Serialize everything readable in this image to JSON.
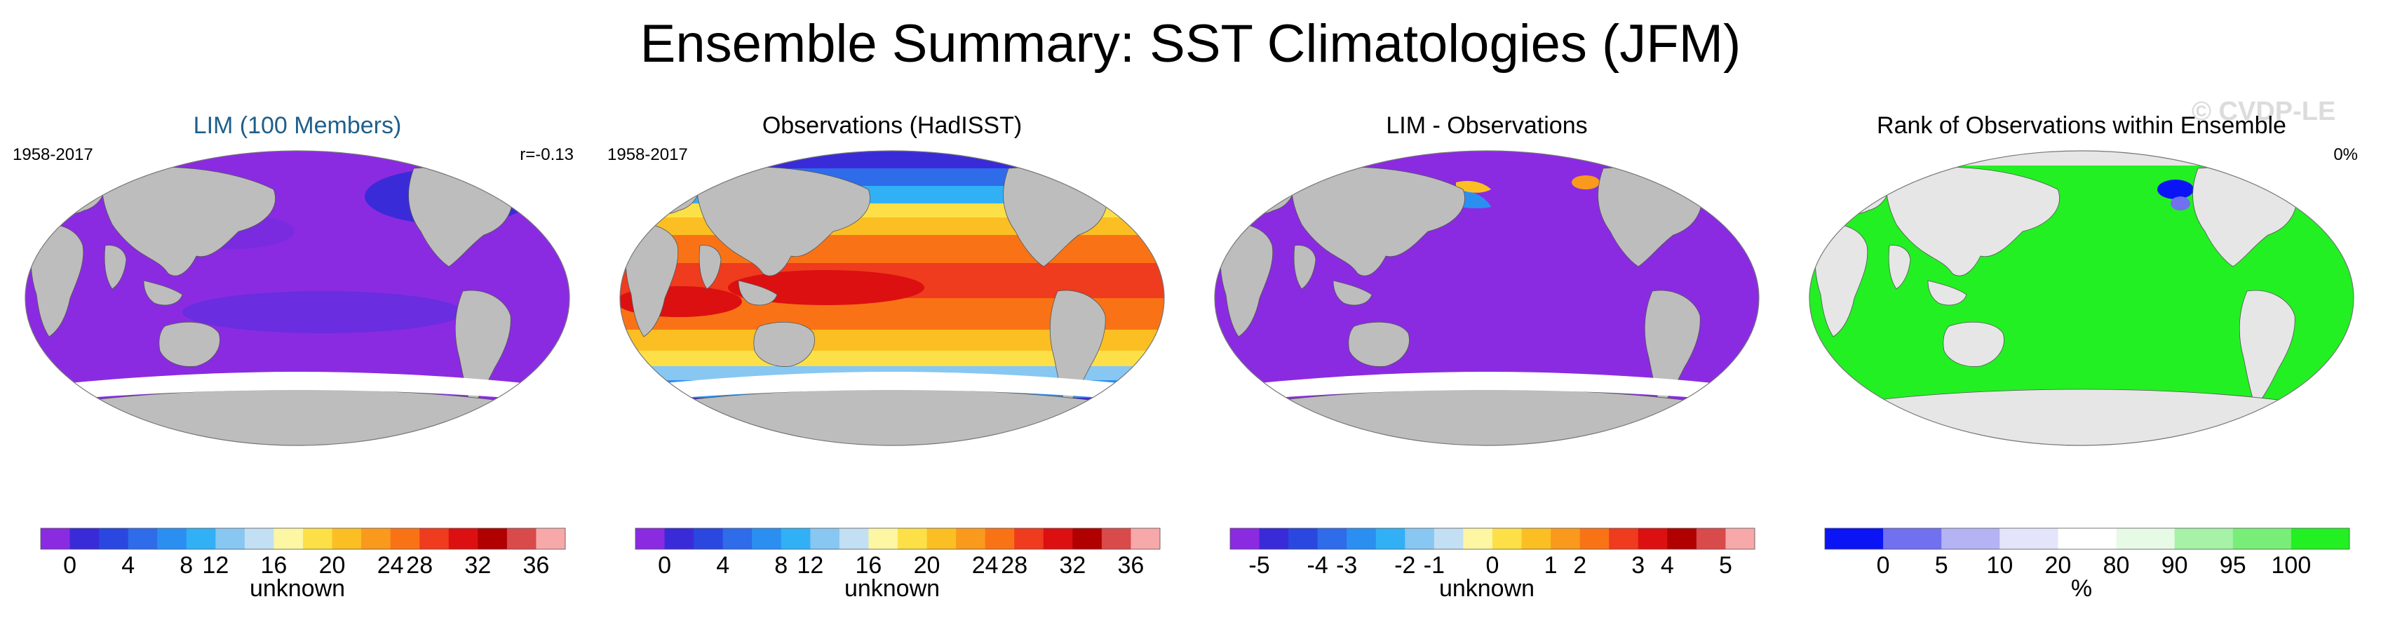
{
  "figure": {
    "title": "Ensemble Summary: SST Climatologies (JFM)",
    "watermark": "© CVDP-LE"
  },
  "panels": [
    {
      "title": "LIM (100 Members)",
      "title_color": "#1f5f8b",
      "left_label": "1958-2017",
      "right_label": "r=-0.13",
      "land_color": "#bdbdbd",
      "ocean_pattern": "purple-uniform",
      "colorbar": {
        "colors": [
          "#8a2be2",
          "#3a2bd8",
          "#2a48e0",
          "#2e6cea",
          "#2b8ff2",
          "#31b0f5",
          "#87c7f2",
          "#c3dff3",
          "#fdf6a2",
          "#fde047",
          "#fbbf24",
          "#f99a1c",
          "#f97316",
          "#ef3b1e",
          "#dc1010",
          "#b00000",
          "#d94a4a",
          "#f7a8a8"
        ],
        "labels": [
          "0",
          "4",
          "8",
          "12",
          "16",
          "20",
          "24",
          "28",
          "32",
          "36"
        ],
        "unit": "unknown"
      }
    },
    {
      "title": "Observations (HadISST)",
      "title_color": "#000000",
      "left_label": "1958-2017",
      "right_label": "",
      "land_color": "#bdbdbd",
      "ocean_pattern": "sst-gradient",
      "colorbar": {
        "colors": [
          "#8a2be2",
          "#3a2bd8",
          "#2a48e0",
          "#2e6cea",
          "#2b8ff2",
          "#31b0f5",
          "#87c7f2",
          "#c3dff3",
          "#fdf6a2",
          "#fde047",
          "#fbbf24",
          "#f99a1c",
          "#f97316",
          "#ef3b1e",
          "#dc1010",
          "#b00000",
          "#d94a4a",
          "#f7a8a8"
        ],
        "labels": [
          "0",
          "4",
          "8",
          "12",
          "16",
          "20",
          "24",
          "28",
          "32",
          "36"
        ],
        "unit": "unknown"
      }
    },
    {
      "title": "LIM - Observations",
      "title_color": "#000000",
      "left_label": "",
      "right_label": "",
      "land_color": "#bdbdbd",
      "ocean_pattern": "purple-uniform",
      "colorbar": {
        "colors": [
          "#8a2be2",
          "#3a2bd8",
          "#2a48e0",
          "#2e6cea",
          "#2b8ff2",
          "#31b0f5",
          "#87c7f2",
          "#c3dff3",
          "#fdf6a2",
          "#fde047",
          "#fbbf24",
          "#f99a1c",
          "#f97316",
          "#ef3b1e",
          "#dc1010",
          "#b00000",
          "#d94a4a",
          "#f7a8a8"
        ],
        "labels": [
          "-5",
          "-4",
          "-3",
          "-2",
          "-1",
          "0",
          "1",
          "2",
          "3",
          "4",
          "5"
        ],
        "unit": "unknown"
      }
    },
    {
      "title": "Rank of Observations within Ensemble",
      "title_color": "#000000",
      "left_label": "",
      "right_label": "0%",
      "land_color": "#e6e6e6",
      "ocean_pattern": "green-uniform",
      "colorbar": {
        "colors": [
          "#0a14f5",
          "#7070f0",
          "#b4b4f4",
          "#e4e4fb",
          "#ffffff",
          "#e6fae6",
          "#a6f2a6",
          "#78ee78",
          "#22f022"
        ],
        "labels": [
          "0",
          "5",
          "10",
          "20",
          "80",
          "90",
          "95",
          "100"
        ],
        "unit": "%"
      }
    }
  ]
}
